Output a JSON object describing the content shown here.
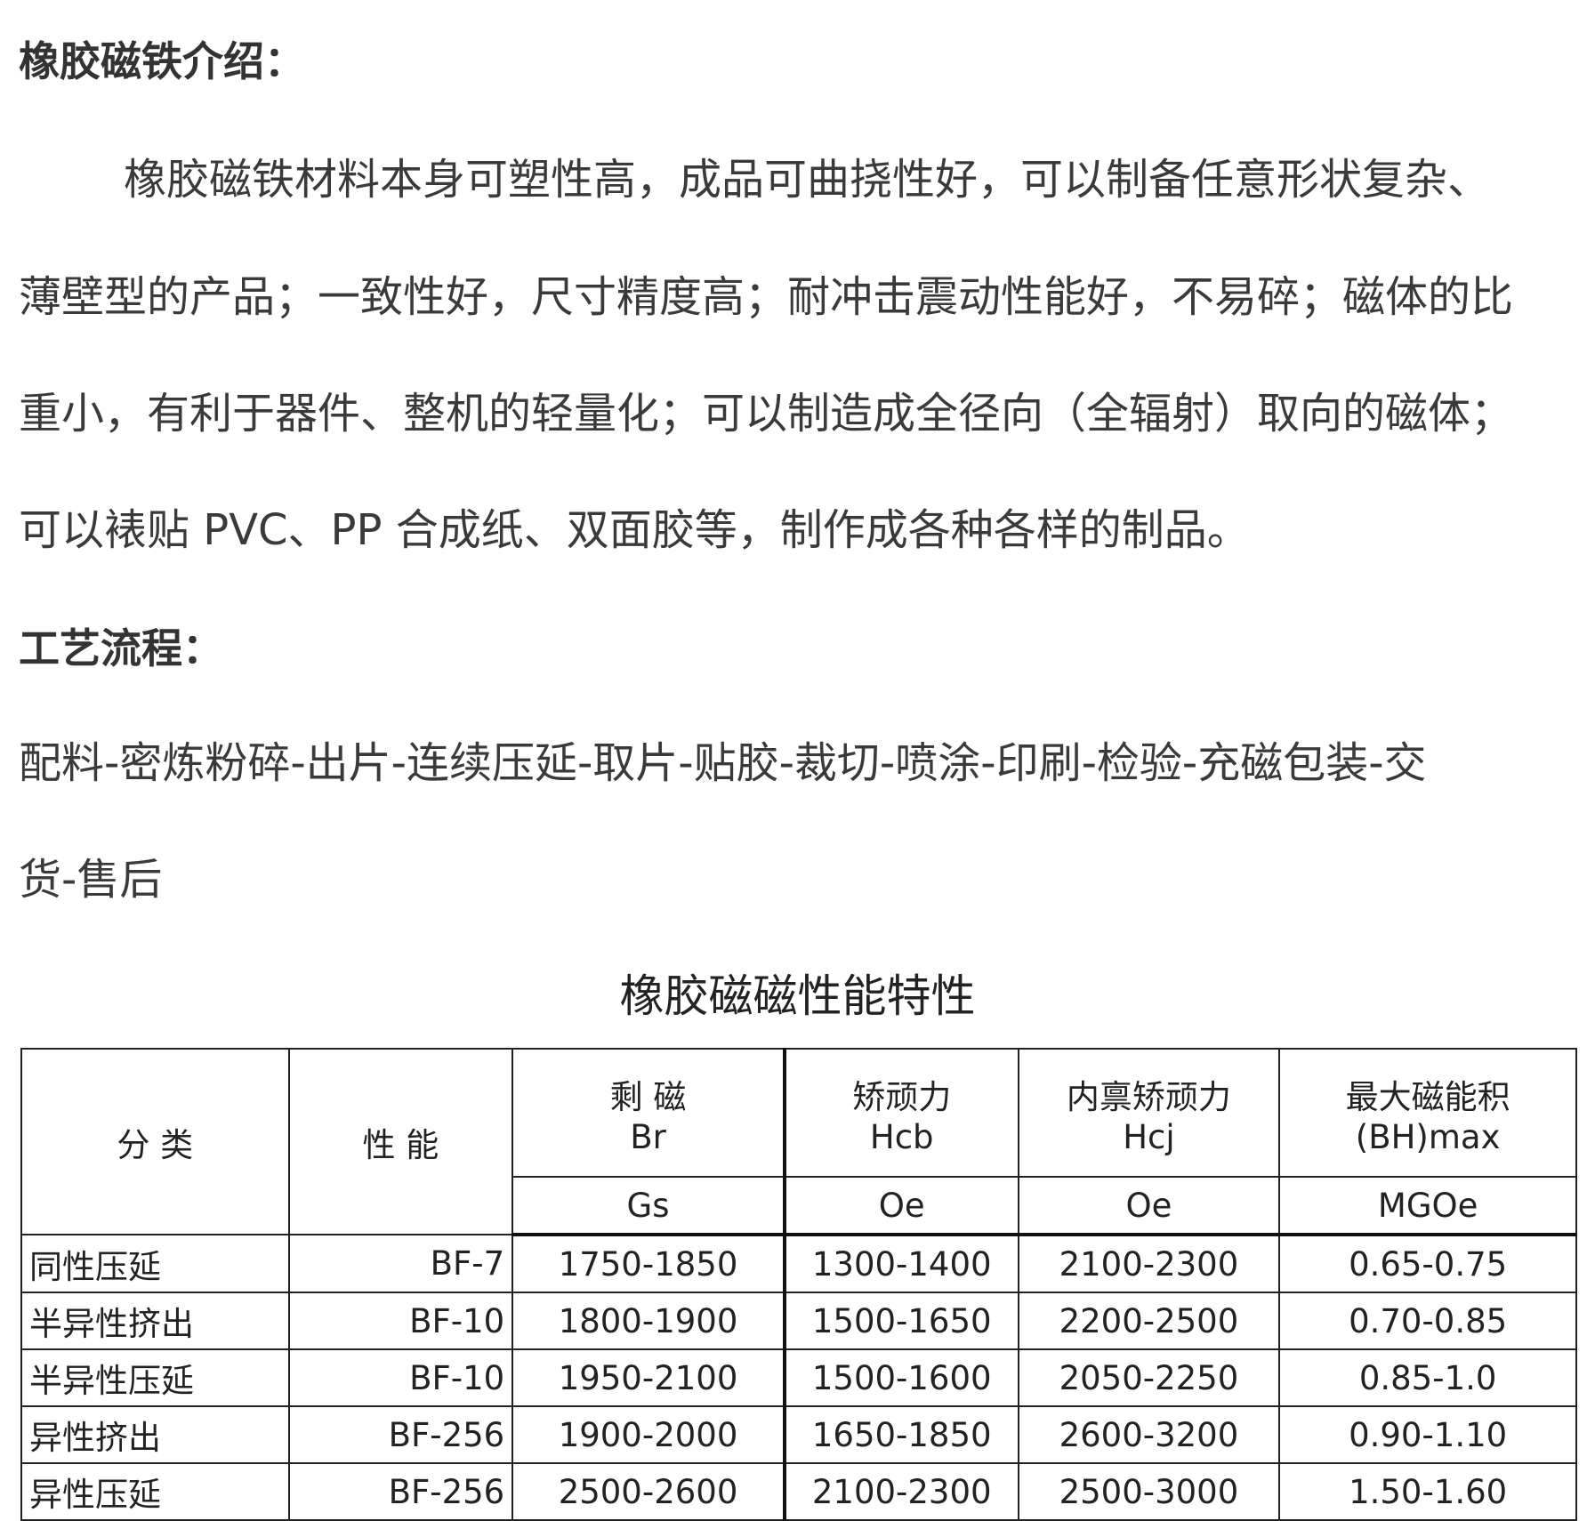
{
  "intro": {
    "heading": "橡胶磁铁介绍：",
    "lines": [
      "橡胶磁铁材料本身可塑性高，成品可曲挠性好，可以制备任意形状复杂、",
      "薄壁型的产品；一致性好，尺寸精度高；耐冲击震动性能好，不易碎；磁体的比",
      "重小，有利于器件、整机的轻量化；可以制造成全径向（全辐射）取向的磁体；",
      "可以裱贴 PVC、PP 合成纸、双面胶等，制作成各种各样的制品。"
    ]
  },
  "process": {
    "heading": "工艺流程：",
    "lines": [
      "配料-密炼粉碎-出片-连续压延-取片-贴胶-裁切-喷涂-印刷-检验-充磁包装-交",
      "货-售后"
    ]
  },
  "table": {
    "title": "橡胶磁磁性能特性",
    "headers": {
      "category": "分 类",
      "grade": "性 能",
      "br": [
        "剩 磁",
        "Br"
      ],
      "hcb": [
        "矫顽力",
        "Hcb"
      ],
      "hcj": [
        "内禀矫顽力",
        "Hcj"
      ],
      "bh": [
        "最大磁能积",
        "(BH)max"
      ]
    },
    "units": [
      "Gs",
      "Oe",
      "Oe",
      "MGOe"
    ],
    "rows": [
      [
        "同性压延",
        "BF-7",
        "1750-1850",
        "1300-1400",
        "2100-2300",
        "0.65-0.75"
      ],
      [
        "半异性挤出",
        "BF-10",
        "1800-1900",
        "1500-1650",
        "2200-2500",
        "0.70-0.85"
      ],
      [
        "半异性压延",
        "BF-10",
        "1950-2100",
        "1500-1600",
        "2050-2250",
        "0.85-1.0"
      ],
      [
        "异性挤出",
        "BF-256",
        "1900-2000",
        "1650-1850",
        "2600-3200",
        "0.90-1.10"
      ],
      [
        "异性压延",
        "BF-256",
        "2500-2600",
        "2100-2300",
        "2500-3000",
        "1.50-1.60"
      ]
    ]
  }
}
